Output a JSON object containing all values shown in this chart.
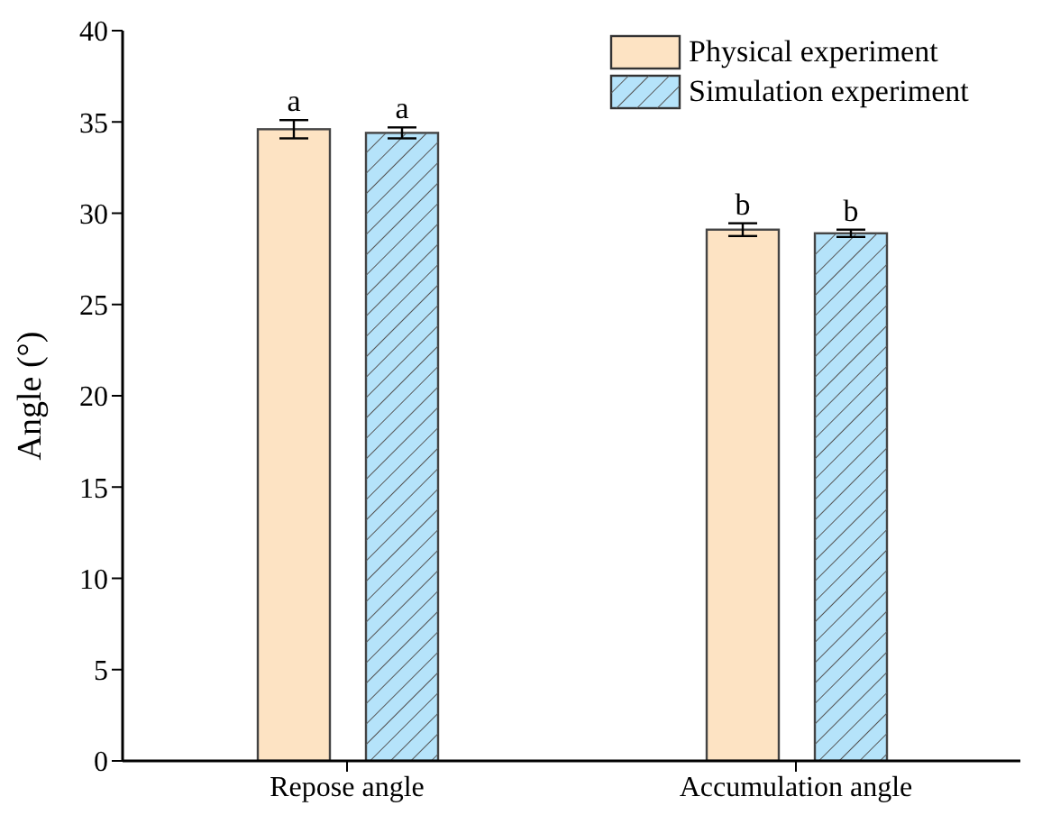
{
  "chart_data": {
    "type": "bar",
    "ylabel": "Angle (°)",
    "categories": [
      "Repose angle",
      "Accumulation angle"
    ],
    "series": [
      {
        "name": "Physical experiment",
        "color": "#fde3c3",
        "values": [
          34.6,
          29.1
        ],
        "errors": [
          0.5,
          0.35
        ]
      },
      {
        "name": "Simulation experiment",
        "color": "#b5e3fa",
        "values": [
          34.4,
          28.9
        ],
        "errors": [
          0.3,
          0.2
        ]
      }
    ],
    "ylim": [
      0,
      40
    ],
    "yticks": [
      0,
      5,
      10,
      15,
      20,
      25,
      30,
      35,
      40
    ],
    "grid": false,
    "legend": "top right",
    "annotations": [
      "a",
      "a",
      "b",
      "b"
    ]
  }
}
